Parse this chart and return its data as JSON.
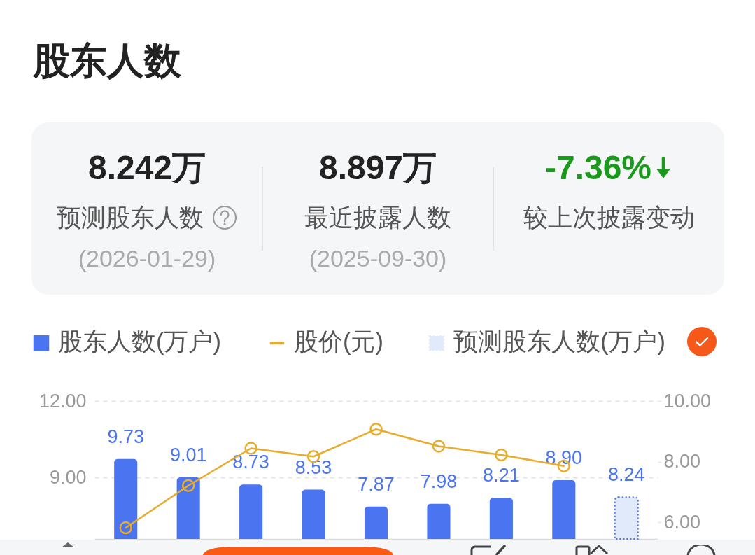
{
  "chart_data": [
    {
      "type": "other",
      "title": "股东人数",
      "categories": [
        "8.242万",
        "8.897万",
        "-7.36%"
      ],
      "annotations": [
        "预测股东人数",
        "最近披露人数",
        "较上次披露变动",
        "(2026-01-29)",
        "(2025-09-30)"
      ]
    },
    {
      "type": "bar",
      "categories": [
        null,
        null,
        null,
        null,
        null,
        null,
        null,
        null,
        null
      ],
      "series": [
        {
          "name": "股东人数(万户)",
          "type": "bar",
          "color": "#4a74f0",
          "values": [
            9.73,
            9.01,
            8.73,
            8.53,
            7.87,
            7.98,
            8.21,
            8.9,
            null
          ],
          "value_labels": [
            "9.73",
            "9.01",
            "8.73",
            "8.53",
            "7.87",
            "7.98",
            "8.21",
            "8.90",
            null
          ]
        },
        {
          "name": "股价(元)",
          "type": "line",
          "axis": "y2",
          "color": "#e8ac2c",
          "marker": "circle",
          "values": [
            5.82,
            7.21,
            8.44,
            8.17,
            9.07,
            8.51,
            8.22,
            7.86,
            null
          ]
        },
        {
          "name": "预测股东人数(万户)",
          "type": "bar",
          "color": "#e1eafb",
          "line_style": "dotted",
          "values": [
            null,
            null,
            null,
            null,
            null,
            null,
            null,
            null,
            8.24
          ],
          "value_labels": [
            null,
            null,
            null,
            null,
            null,
            null,
            null,
            null,
            "8.24"
          ]
        }
      ],
      "ylim": [
        6.6,
        12
      ],
      "yticks": [
        {
          "value": 12,
          "label": "12.00"
        },
        {
          "value": 9,
          "label": "9.00"
        }
      ],
      "y2lim": [
        5.45,
        10
      ],
      "y2ticks": [
        {
          "value": 10,
          "label": "10.00"
        },
        {
          "value": 8,
          "label": "8.00"
        },
        {
          "value": 6,
          "label": "6.00"
        }
      ],
      "grid": "y",
      "legend": "top"
    }
  ]
}
